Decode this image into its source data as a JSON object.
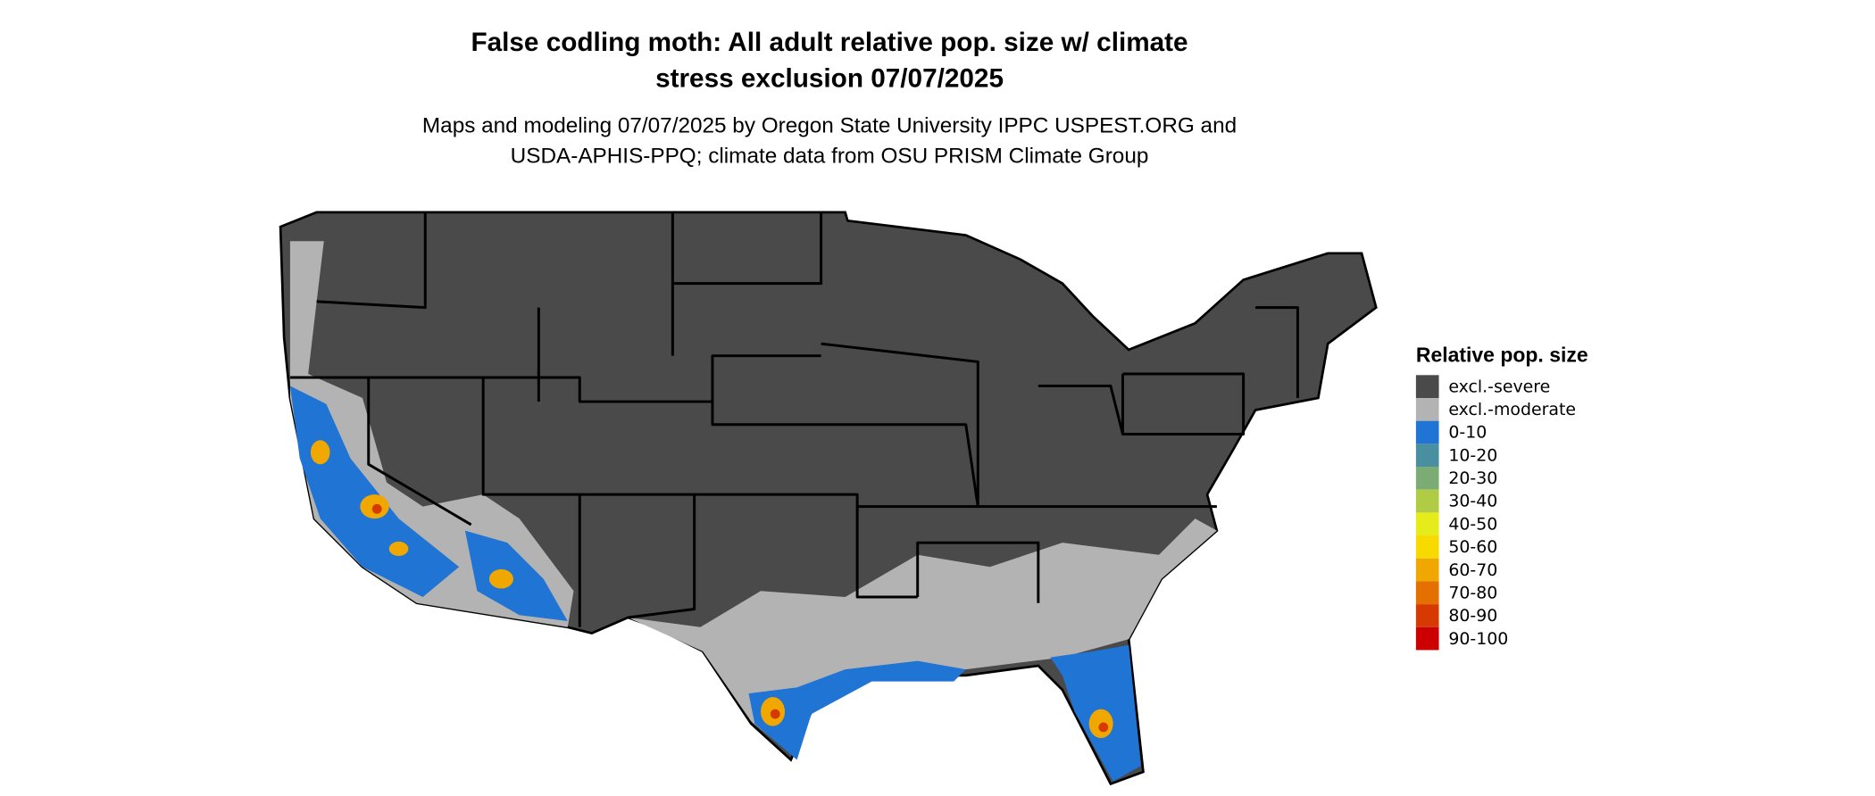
{
  "header": {
    "title": [
      "False codling moth: All adult relative pop. size w/ climate",
      "stress exclusion 07/07/2025"
    ],
    "subtitle": [
      "Maps and modeling 07/07/2025 by Oregon State University IPPC USPEST.ORG and",
      "USDA-APHIS-PPQ; climate data from OSU PRISM Climate Group"
    ]
  },
  "legend": {
    "title": "Relative pop. size",
    "items": [
      {
        "label": "excl.-severe",
        "color": "#4a4a4a"
      },
      {
        "label": "excl.-moderate",
        "color": "#b3b3b3"
      },
      {
        "label": "0-10",
        "color": "#1f74d4"
      },
      {
        "label": "10-20",
        "color": "#4a8fa0"
      },
      {
        "label": "20-30",
        "color": "#7aac74"
      },
      {
        "label": "30-40",
        "color": "#b0cc44"
      },
      {
        "label": "40-50",
        "color": "#e6ec1a"
      },
      {
        "label": "50-60",
        "color": "#f7da00"
      },
      {
        "label": "60-70",
        "color": "#f0a800"
      },
      {
        "label": "70-80",
        "color": "#e47000"
      },
      {
        "label": "80-90",
        "color": "#d63a00"
      },
      {
        "label": "90-100",
        "color": "#cc0000"
      }
    ]
  }
}
